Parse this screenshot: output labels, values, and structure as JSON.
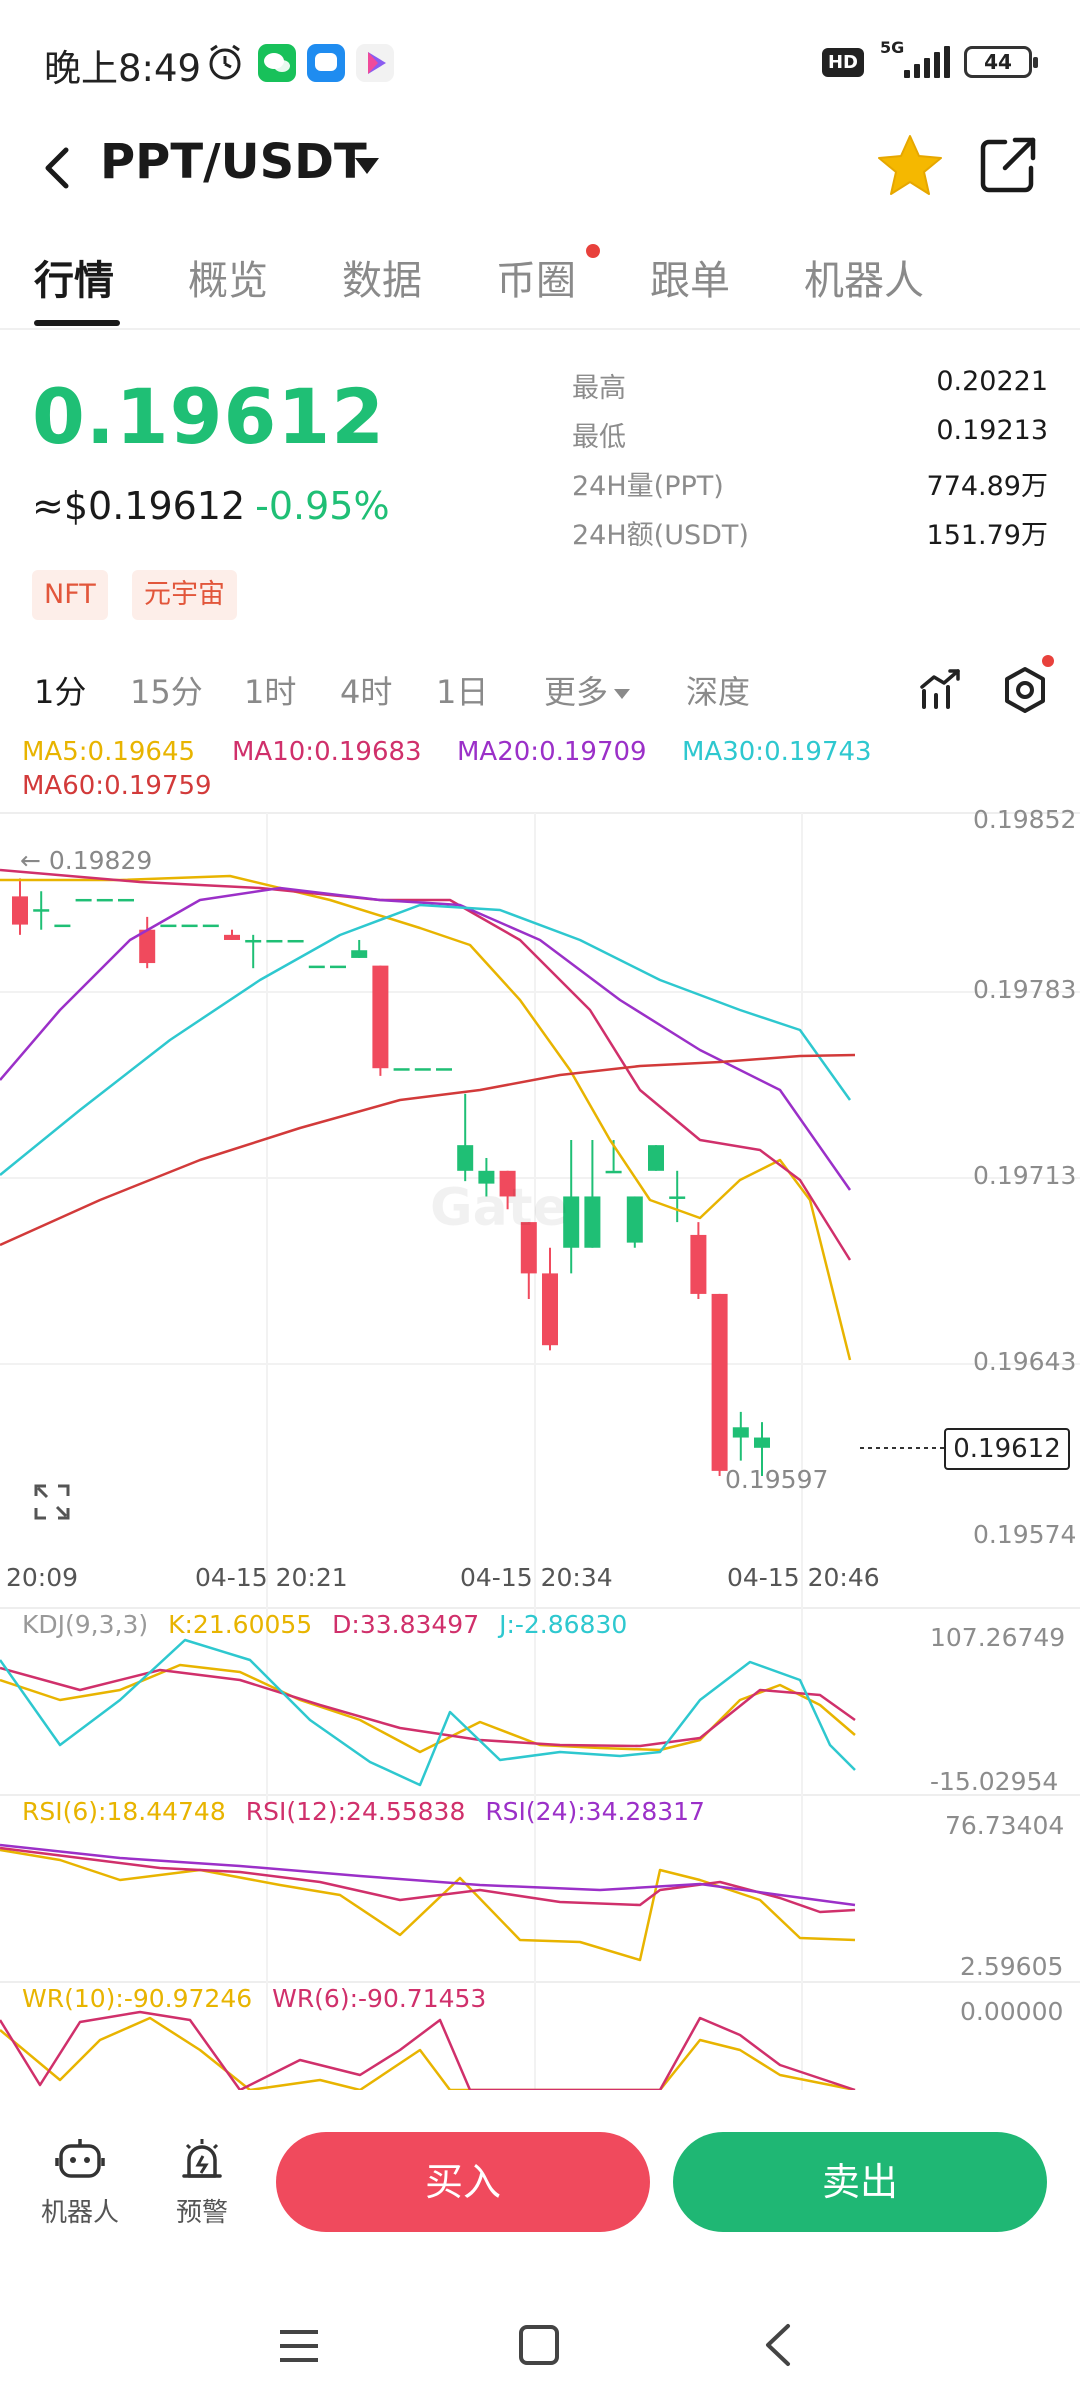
{
  "status": {
    "time": "晚上8:49",
    "network": "5G",
    "hd": "HD",
    "battery": "44"
  },
  "header": {
    "pair": "PPT/USDT"
  },
  "tabs": [
    {
      "label": "行情",
      "active": true
    },
    {
      "label": "概览"
    },
    {
      "label": "数据"
    },
    {
      "label": "币圈",
      "dot": true
    },
    {
      "label": "跟单"
    },
    {
      "label": "机器人"
    }
  ],
  "price": {
    "last": "0.19612",
    "usd": "≈$0.19612",
    "change": "-0.95%",
    "tags": [
      "NFT",
      "元宇宙"
    ]
  },
  "stats": [
    {
      "label": "最高",
      "value": "0.20221"
    },
    {
      "label": "最低",
      "value": "0.19213"
    },
    {
      "label": "24H量(PPT)",
      "value": "774.89万"
    },
    {
      "label": "24H额(USDT)",
      "value": "151.79万"
    }
  ],
  "intervals": [
    {
      "label": "1分",
      "active": true
    },
    {
      "label": "15分"
    },
    {
      "label": "1时"
    },
    {
      "label": "4时"
    },
    {
      "label": "1日"
    },
    {
      "label": "更多"
    },
    {
      "label": "深度"
    }
  ],
  "ma_legend": [
    {
      "label": "MA5:0.19645",
      "color": "#e8b400"
    },
    {
      "label": "MA10:0.19683",
      "color": "#d0306b"
    },
    {
      "label": "MA20:0.19709",
      "color": "#9b30c8"
    },
    {
      "label": "MA30:0.19743",
      "color": "#2ec8cf"
    },
    {
      "label": "MA60:0.19759",
      "color": "#d23a3a"
    }
  ],
  "chart_data": [
    {
      "type": "candlestick",
      "y_ticks": [
        "0.19852",
        "0.19783",
        "0.19713",
        "0.19643",
        "0.19574"
      ],
      "x_ticks": [
        "20:09",
        "04-15 20:21",
        "04-15 20:34",
        "04-15 20:46"
      ],
      "ylim": [
        0.19574,
        0.19852
      ],
      "annotations": {
        "max_label": "← 0.19829",
        "min_label": "0.19597",
        "last_price": "0.19612"
      },
      "watermark": "Gate",
      "candles": [
        {
          "o": 0.19823,
          "h": 0.1983,
          "l": 0.19808,
          "c": 0.19812
        },
        {
          "o": 0.19818,
          "h": 0.19825,
          "l": 0.1981,
          "c": 0.19818
        },
        {
          "o": 0.19812,
          "h": 0.19812,
          "l": 0.19812,
          "c": 0.19812
        },
        {
          "o": 0.19822,
          "h": 0.19822,
          "l": 0.19822,
          "c": 0.19822
        },
        {
          "o": 0.19822,
          "h": 0.19822,
          "l": 0.19822,
          "c": 0.19822
        },
        {
          "o": 0.19822,
          "h": 0.19822,
          "l": 0.19822,
          "c": 0.19822
        },
        {
          "o": 0.1981,
          "h": 0.19815,
          "l": 0.19795,
          "c": 0.19797
        },
        {
          "o": 0.19812,
          "h": 0.19812,
          "l": 0.19812,
          "c": 0.19812
        },
        {
          "o": 0.19812,
          "h": 0.19812,
          "l": 0.19812,
          "c": 0.19812
        },
        {
          "o": 0.19812,
          "h": 0.19812,
          "l": 0.19812,
          "c": 0.19812
        },
        {
          "o": 0.19808,
          "h": 0.1981,
          "l": 0.19806,
          "c": 0.19806
        },
        {
          "o": 0.19806,
          "h": 0.19808,
          "l": 0.19795,
          "c": 0.19806
        },
        {
          "o": 0.19806,
          "h": 0.19806,
          "l": 0.19806,
          "c": 0.19806
        },
        {
          "o": 0.19806,
          "h": 0.19806,
          "l": 0.19806,
          "c": 0.19806
        },
        {
          "o": 0.19796,
          "h": 0.19796,
          "l": 0.19796,
          "c": 0.19796
        },
        {
          "o": 0.19796,
          "h": 0.19796,
          "l": 0.19796,
          "c": 0.19796
        },
        {
          "o": 0.19799,
          "h": 0.19806,
          "l": 0.19799,
          "c": 0.19802
        },
        {
          "o": 0.19796,
          "h": 0.19796,
          "l": 0.19753,
          "c": 0.19756
        },
        {
          "o": 0.19756,
          "h": 0.19756,
          "l": 0.19756,
          "c": 0.19756
        },
        {
          "o": 0.19756,
          "h": 0.19756,
          "l": 0.19756,
          "c": 0.19756
        },
        {
          "o": 0.19756,
          "h": 0.19756,
          "l": 0.19756,
          "c": 0.19756
        },
        {
          "o": 0.19716,
          "h": 0.19746,
          "l": 0.19712,
          "c": 0.19726
        },
        {
          "o": 0.19711,
          "h": 0.19721,
          "l": 0.19706,
          "c": 0.19716
        },
        {
          "o": 0.19716,
          "h": 0.19716,
          "l": 0.19701,
          "c": 0.19706
        },
        {
          "o": 0.19696,
          "h": 0.19696,
          "l": 0.19666,
          "c": 0.19676
        },
        {
          "o": 0.19676,
          "h": 0.19686,
          "l": 0.19646,
          "c": 0.19648
        },
        {
          "o": 0.19686,
          "h": 0.19728,
          "l": 0.19676,
          "c": 0.19706
        },
        {
          "o": 0.19686,
          "h": 0.19728,
          "l": 0.19686,
          "c": 0.19706
        },
        {
          "o": 0.19716,
          "h": 0.19728,
          "l": 0.19716,
          "c": 0.19716
        },
        {
          "o": 0.19688,
          "h": 0.19706,
          "l": 0.19686,
          "c": 0.19706
        },
        {
          "o": 0.19716,
          "h": 0.19726,
          "l": 0.19716,
          "c": 0.19726
        },
        {
          "o": 0.19706,
          "h": 0.19716,
          "l": 0.19696,
          "c": 0.19706
        },
        {
          "o": 0.19691,
          "h": 0.19696,
          "l": 0.19666,
          "c": 0.19668
        },
        {
          "o": 0.19668,
          "h": 0.19668,
          "l": 0.19597,
          "c": 0.19599
        },
        {
          "o": 0.19612,
          "h": 0.19622,
          "l": 0.19603,
          "c": 0.19616
        },
        {
          "o": 0.19608,
          "h": 0.19618,
          "l": 0.19597,
          "c": 0.19612
        }
      ]
    },
    {
      "type": "line",
      "title": "KDJ(9,3,3)",
      "series": [
        {
          "name": "K:21.60055",
          "color": "#e8b400"
        },
        {
          "name": "D:33.83497",
          "color": "#d0306b"
        },
        {
          "name": "J:-2.86830",
          "color": "#2ec8cf"
        }
      ],
      "ylim": [
        -15.02954,
        107.26749
      ],
      "y_ticks": [
        "107.26749",
        "-15.02954"
      ]
    },
    {
      "type": "line",
      "series": [
        {
          "name": "RSI(6):18.44748",
          "color": "#e8b400"
        },
        {
          "name": "RSI(12):24.55838",
          "color": "#d0306b"
        },
        {
          "name": "RSI(24):34.28317",
          "color": "#9b30c8"
        }
      ],
      "ylim": [
        2.59605,
        76.73404
      ],
      "y_ticks": [
        "76.73404",
        "2.59605"
      ]
    },
    {
      "type": "line",
      "series": [
        {
          "name": "WR(10):-90.97246",
          "color": "#e8b400"
        },
        {
          "name": "WR(6):-90.71453",
          "color": "#d0306b"
        }
      ],
      "y_ticks": [
        "0.00000"
      ]
    }
  ],
  "bottom": {
    "robot": "机器人",
    "alert": "预警",
    "buy": "买入",
    "sell": "卖出"
  }
}
